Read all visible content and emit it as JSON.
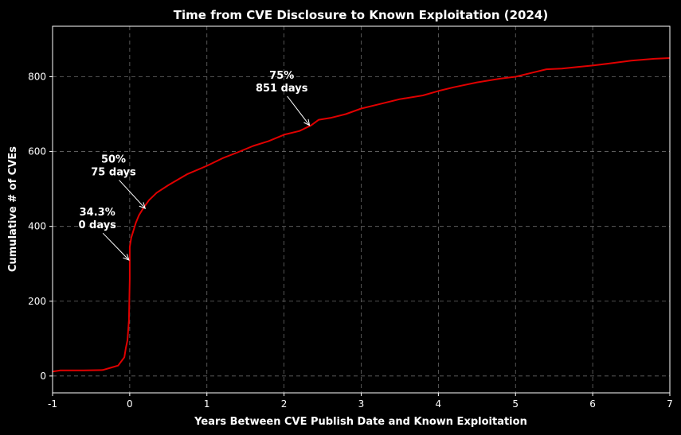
{
  "chart_data": {
    "type": "line",
    "title": "Time from CVE Disclosure to Known Exploitation (2024)",
    "xlabel": "Years Between CVE Publish Date and Known Exploitation",
    "ylabel": "Cumulative # of CVEs",
    "xlim": [
      -1,
      7
    ],
    "ylim": [
      -45,
      935
    ],
    "xticks": [
      -1,
      0,
      1,
      2,
      3,
      4,
      5,
      6,
      7
    ],
    "yticks": [
      0,
      200,
      400,
      600,
      800
    ],
    "grid": true,
    "line_color": "#e00000",
    "series": [
      {
        "name": "Cumulative CVEs",
        "x": [
          -1.0,
          -0.9,
          -0.6,
          -0.35,
          -0.25,
          -0.15,
          -0.1,
          -0.07,
          -0.05,
          -0.03,
          -0.01,
          0.0,
          0.0,
          0.0,
          0.02,
          0.05,
          0.08,
          0.12,
          0.18,
          0.25,
          0.35,
          0.5,
          0.75,
          1.0,
          1.2,
          1.4,
          1.6,
          1.8,
          2.0,
          2.2,
          2.35,
          2.45,
          2.6,
          2.8,
          3.0,
          3.2,
          3.5,
          3.8,
          4.0,
          4.2,
          4.5,
          4.8,
          5.0,
          5.2,
          5.4,
          5.6,
          5.8,
          6.0,
          6.2,
          6.5,
          6.8,
          7.0
        ],
        "y": [
          12,
          15,
          15,
          16,
          22,
          28,
          42,
          50,
          75,
          95,
          150,
          260,
          310,
          345,
          370,
          390,
          410,
          430,
          450,
          470,
          490,
          510,
          540,
          562,
          582,
          598,
          615,
          628,
          645,
          655,
          670,
          685,
          690,
          700,
          715,
          725,
          740,
          750,
          762,
          772,
          785,
          795,
          800,
          810,
          820,
          822,
          826,
          830,
          835,
          843,
          848,
          850
        ]
      }
    ],
    "annotations": [
      {
        "line1": "34.3%",
        "line2": "0 days",
        "text_x": -0.42,
        "text_y": 418,
        "point_x": -0.01,
        "point_y": 310
      },
      {
        "line1": "50%",
        "line2": "75 days",
        "text_x": -0.21,
        "text_y": 560,
        "point_x": 0.2,
        "point_y": 448
      },
      {
        "line1": "75%",
        "line2": "851 days",
        "text_x": 1.97,
        "text_y": 784,
        "point_x": 2.33,
        "point_y": 670
      }
    ]
  }
}
